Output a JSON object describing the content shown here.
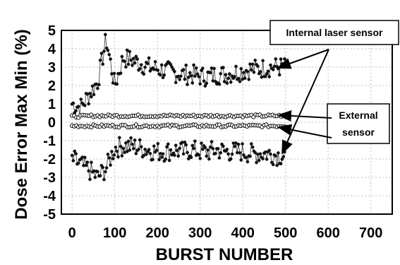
{
  "chart_data": {
    "type": "scatter",
    "xlabel": "BURST NUMBER",
    "ylabel": "Dose Error Max Min (%)",
    "xlim": [
      -25,
      750
    ],
    "ylim": [
      -5,
      5
    ],
    "x_ticks": [
      0,
      100,
      200,
      300,
      400,
      500,
      600,
      700
    ],
    "y_ticks": [
      5,
      4,
      3,
      2,
      1,
      0,
      -1,
      -2,
      -3,
      -4,
      -5
    ],
    "grid": true,
    "series": [
      {
        "name": "Internal laser sensor",
        "marker": "filled-circle",
        "x": [
          0,
          20,
          40,
          60,
          80,
          100,
          120,
          140,
          160,
          180,
          200,
          220,
          240,
          260,
          280,
          300,
          320,
          340,
          360,
          380,
          400,
          420,
          440,
          460,
          480,
          500
        ],
        "max": [
          1.0,
          0.8,
          1.5,
          2.2,
          4.5,
          2.0,
          3.5,
          3.4,
          3.2,
          3.0,
          2.9,
          2.8,
          2.7,
          2.6,
          2.6,
          2.5,
          2.5,
          2.6,
          2.6,
          2.7,
          2.8,
          2.9,
          2.9,
          3.0,
          3.0,
          3.0
        ],
        "min": [
          -2.0,
          -2.3,
          -2.6,
          -3.0,
          -2.5,
          -1.4,
          -1.3,
          -1.3,
          -1.4,
          -1.5,
          -1.6,
          -1.6,
          -1.5,
          -1.6,
          -1.5,
          -1.6,
          -1.6,
          -1.5,
          -1.6,
          -1.6,
          -1.6,
          -1.7,
          -1.7,
          -1.7,
          -1.8,
          -1.8
        ]
      },
      {
        "name": "External sensor",
        "marker": "open-circle",
        "x": [
          0,
          50,
          100,
          150,
          200,
          250,
          300,
          350,
          400,
          450,
          500
        ],
        "max": [
          0.3,
          0.35,
          0.35,
          0.35,
          0.35,
          0.35,
          0.35,
          0.35,
          0.35,
          0.35,
          0.35
        ],
        "min": [
          -0.2,
          -0.2,
          -0.2,
          -0.2,
          -0.2,
          -0.2,
          -0.2,
          -0.2,
          -0.2,
          -0.2,
          -0.2
        ]
      }
    ],
    "annotations": [
      {
        "text": "Internal laser sensor",
        "targets": "internal-laser-sensor series"
      },
      {
        "text_lines": [
          "External",
          "sensor"
        ],
        "targets": "external-sensor series"
      }
    ]
  }
}
